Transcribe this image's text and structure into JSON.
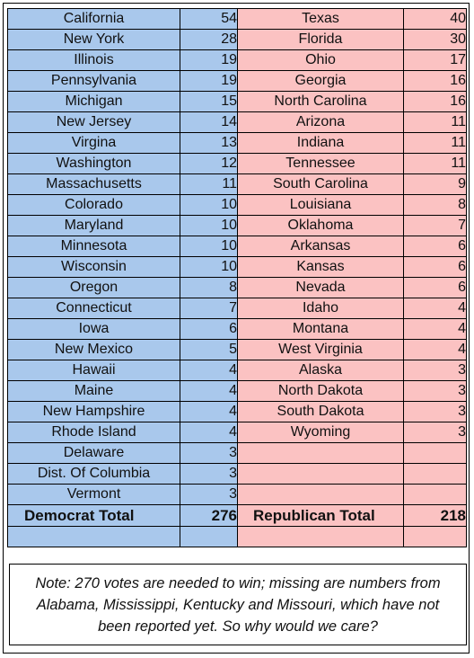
{
  "democrat_states": [
    {
      "state": "California",
      "votes": "54"
    },
    {
      "state": "New York",
      "votes": "28"
    },
    {
      "state": "Illinois",
      "votes": "19"
    },
    {
      "state": "Pennsylvania",
      "votes": "19"
    },
    {
      "state": "Michigan",
      "votes": "15"
    },
    {
      "state": "New Jersey",
      "votes": "14"
    },
    {
      "state": "Virgina",
      "votes": "13"
    },
    {
      "state": "Washington",
      "votes": "12"
    },
    {
      "state": "Massachusetts",
      "votes": "11"
    },
    {
      "state": "Colorado",
      "votes": "10"
    },
    {
      "state": "Maryland",
      "votes": "10"
    },
    {
      "state": "Minnesota",
      "votes": "10"
    },
    {
      "state": "Wisconsin",
      "votes": "10"
    },
    {
      "state": "Oregon",
      "votes": "8"
    },
    {
      "state": "Connecticut",
      "votes": "7"
    },
    {
      "state": "Iowa",
      "votes": "6"
    },
    {
      "state": "New Mexico",
      "votes": "5"
    },
    {
      "state": "Hawaii",
      "votes": "4"
    },
    {
      "state": "Maine",
      "votes": "4"
    },
    {
      "state": "New Hampshire",
      "votes": "4"
    },
    {
      "state": "Rhode Island",
      "votes": "4"
    },
    {
      "state": "Delaware",
      "votes": "3"
    },
    {
      "state": "Dist. Of Columbia",
      "votes": "3"
    },
    {
      "state": "Vermont",
      "votes": "3"
    }
  ],
  "republican_states": [
    {
      "state": "Texas",
      "votes": "40"
    },
    {
      "state": "Florida",
      "votes": "30"
    },
    {
      "state": "Ohio",
      "votes": "17"
    },
    {
      "state": "Georgia",
      "votes": "16"
    },
    {
      "state": "North Carolina",
      "votes": "16"
    },
    {
      "state": "Arizona",
      "votes": "11"
    },
    {
      "state": "Indiana",
      "votes": "11"
    },
    {
      "state": "Tennessee",
      "votes": "11"
    },
    {
      "state": "South Carolina",
      "votes": "9"
    },
    {
      "state": "Louisiana",
      "votes": "8"
    },
    {
      "state": "Oklahoma",
      "votes": "7"
    },
    {
      "state": "Arkansas",
      "votes": "6"
    },
    {
      "state": "Kansas",
      "votes": "6"
    },
    {
      "state": "Nevada",
      "votes": "6"
    },
    {
      "state": "Idaho",
      "votes": "4"
    },
    {
      "state": "Montana",
      "votes": "4"
    },
    {
      "state": "West Virginia",
      "votes": "4"
    },
    {
      "state": "Alaska",
      "votes": "3"
    },
    {
      "state": "North Dakota",
      "votes": "3"
    },
    {
      "state": "South Dakota",
      "votes": "3"
    },
    {
      "state": "Wyoming",
      "votes": "3"
    }
  ],
  "totals": {
    "democrat_label": "Democrat Total",
    "democrat_value": "276",
    "republican_label": "Republican Total",
    "republican_value": "218"
  },
  "note": "Note: 270 votes are needed to win; missing are numbers from Alabama, Mississippi, Kentucky and Missouri, which have not been reported yet. So why would we care?",
  "colors": {
    "democrat_fill": "#a9c8ec",
    "republican_fill": "#fbc2c2"
  }
}
